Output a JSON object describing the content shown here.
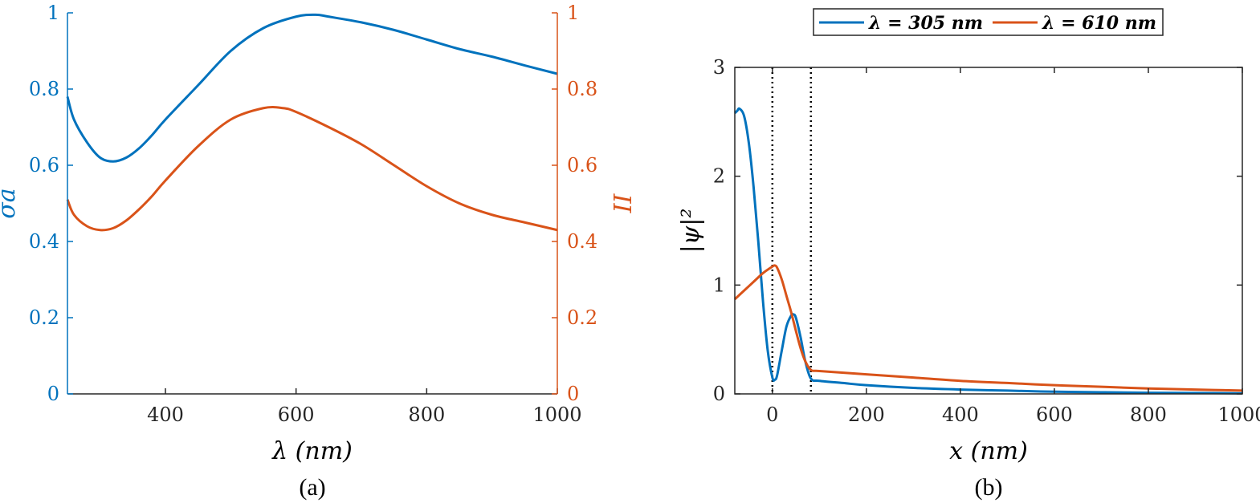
{
  "colors": {
    "blue": "#0072BD",
    "orange": "#D95319",
    "axis": "#262626",
    "guide": "#000000"
  },
  "chart_data": [
    {
      "type": "line",
      "panel_label": "(a)",
      "title": "",
      "xlabel": "λ (nm)",
      "xlim": [
        250,
        1000
      ],
      "xticks": [
        400,
        600,
        800,
        1000
      ],
      "xtick_labels": [
        "400",
        "600",
        "800",
        "1000"
      ],
      "ylabel_left": "σa",
      "ylim_left": [
        0,
        1
      ],
      "yticks_left": [
        0,
        0.2,
        0.4,
        0.6,
        0.8,
        1
      ],
      "ytick_labels_left": [
        "0",
        "0.2",
        "0.4",
        "0.6",
        "0.8",
        "1"
      ],
      "ylabel_right": "II",
      "ylim_right": [
        0,
        1
      ],
      "yticks_right": [
        0,
        0.2,
        0.4,
        0.6,
        0.8,
        1
      ],
      "ytick_labels_right": [
        "0",
        "0.2",
        "0.4",
        "0.6",
        "0.8",
        "1"
      ],
      "grid": false,
      "series": [
        {
          "axis": "left",
          "color": "#0072BD",
          "x": [
            250,
            260,
            280,
            300,
            320,
            340,
            360,
            380,
            400,
            450,
            500,
            550,
            600,
            630,
            650,
            700,
            750,
            800,
            850,
            900,
            950,
            1000
          ],
          "y": [
            0.78,
            0.72,
            0.66,
            0.62,
            0.61,
            0.62,
            0.645,
            0.68,
            0.72,
            0.81,
            0.9,
            0.96,
            0.99,
            0.995,
            0.99,
            0.975,
            0.955,
            0.93,
            0.905,
            0.885,
            0.862,
            0.84
          ]
        },
        {
          "axis": "right",
          "color": "#D95319",
          "x": [
            250,
            260,
            280,
            300,
            320,
            340,
            360,
            380,
            400,
            450,
            500,
            550,
            580,
            600,
            650,
            700,
            750,
            800,
            850,
            900,
            950,
            1000
          ],
          "y": [
            0.51,
            0.47,
            0.44,
            0.43,
            0.435,
            0.455,
            0.485,
            0.52,
            0.56,
            0.65,
            0.72,
            0.75,
            0.75,
            0.74,
            0.7,
            0.655,
            0.6,
            0.545,
            0.5,
            0.47,
            0.45,
            0.43
          ]
        }
      ]
    },
    {
      "type": "line",
      "panel_label": "(b)",
      "title": "",
      "xlabel": "x (nm)",
      "ylabel": "|ψ|²",
      "xlim": [
        -80,
        1000
      ],
      "xticks": [
        0,
        200,
        400,
        600,
        800,
        1000
      ],
      "xtick_labels": [
        "0",
        "200",
        "400",
        "600",
        "800",
        "1000"
      ],
      "ylim": [
        0,
        3
      ],
      "yticks": [
        0,
        1,
        2,
        3
      ],
      "ytick_labels": [
        "0",
        "1",
        "2",
        "3"
      ],
      "grid": false,
      "vertical_lines_x": [
        0,
        82
      ],
      "legend": {
        "placement": "top-outside",
        "entries": [
          "λ = 305 nm",
          "λ = 610 nm"
        ]
      },
      "series": [
        {
          "name": "λ = 305 nm",
          "color": "#0072BD",
          "x": [
            -80,
            -75,
            -70,
            -60,
            -50,
            -40,
            -30,
            -20,
            -10,
            0,
            5,
            10,
            20,
            30,
            40,
            45,
            50,
            60,
            70,
            82,
            100,
            150,
            200,
            300,
            400,
            500,
            600,
            700,
            800,
            900,
            1000
          ],
          "y": [
            2.58,
            2.6,
            2.62,
            2.55,
            2.3,
            1.9,
            1.4,
            0.85,
            0.4,
            0.15,
            0.13,
            0.17,
            0.4,
            0.62,
            0.72,
            0.73,
            0.7,
            0.52,
            0.3,
            0.14,
            0.12,
            0.1,
            0.08,
            0.055,
            0.04,
            0.03,
            0.02,
            0.015,
            0.01,
            0.008,
            0.005
          ]
        },
        {
          "name": "λ = 610 nm",
          "color": "#D95319",
          "x": [
            -80,
            -60,
            -40,
            -20,
            0,
            5,
            10,
            20,
            30,
            40,
            50,
            60,
            70,
            82,
            100,
            200,
            300,
            400,
            500,
            600,
            700,
            800,
            900,
            1000
          ],
          "y": [
            0.87,
            0.95,
            1.03,
            1.11,
            1.17,
            1.18,
            1.16,
            1.05,
            0.9,
            0.75,
            0.58,
            0.42,
            0.3,
            0.22,
            0.21,
            0.18,
            0.15,
            0.12,
            0.1,
            0.08,
            0.065,
            0.05,
            0.04,
            0.03
          ]
        }
      ]
    }
  ]
}
